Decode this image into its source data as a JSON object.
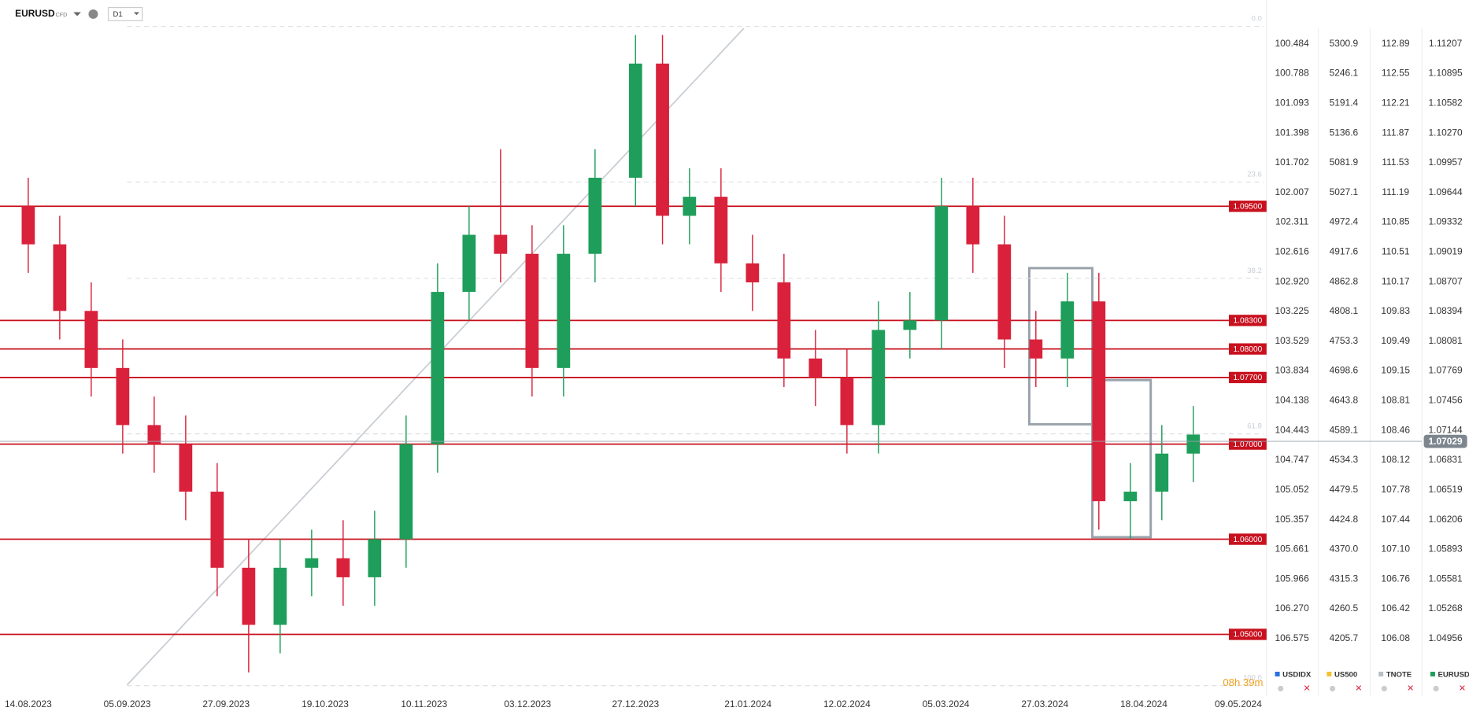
{
  "header": {
    "symbol": "EURUSD",
    "kind": "CFD",
    "interval": "D1"
  },
  "chart_data": {
    "type": "candlestick",
    "x": [
      "14.08.2023",
      "21.08.2023",
      "28.08.2023",
      "04.09.2023",
      "11.09.2023",
      "18.09.2023",
      "25.09.2023",
      "02.10.2023",
      "09.10.2023",
      "16.10.2023",
      "23.10.2023",
      "30.10.2023",
      "06.11.2023",
      "13.11.2023",
      "20.11.2023",
      "27.11.2023",
      "04.12.2023",
      "11.12.2023",
      "18.12.2023",
      "27.12.2023",
      "02.01.2024",
      "08.01.2024",
      "15.01.2024",
      "22.01.2024",
      "29.01.2024",
      "05.02.2024",
      "12.02.2024",
      "19.02.2024",
      "26.02.2024",
      "04.03.2024",
      "11.03.2024",
      "18.03.2024",
      "25.03.2024",
      "01.04.2024",
      "08.04.2024",
      "15.04.2024",
      "22.04.2024",
      "29.04.2024"
    ],
    "open": [
      1.095,
      1.091,
      1.084,
      1.078,
      1.072,
      1.07,
      1.065,
      1.057,
      1.051,
      1.057,
      1.058,
      1.056,
      1.06,
      1.07,
      1.086,
      1.092,
      1.09,
      1.078,
      1.09,
      1.098,
      1.11,
      1.094,
      1.096,
      1.089,
      1.087,
      1.079,
      1.077,
      1.072,
      1.082,
      1.083,
      1.095,
      1.091,
      1.081,
      1.079,
      1.085,
      1.064,
      1.065,
      1.069
    ],
    "high": [
      1.098,
      1.094,
      1.087,
      1.081,
      1.075,
      1.073,
      1.068,
      1.06,
      1.06,
      1.061,
      1.062,
      1.063,
      1.073,
      1.089,
      1.095,
      1.101,
      1.093,
      1.093,
      1.101,
      1.113,
      1.113,
      1.099,
      1.099,
      1.092,
      1.09,
      1.082,
      1.08,
      1.085,
      1.086,
      1.098,
      1.098,
      1.094,
      1.084,
      1.088,
      1.088,
      1.068,
      1.072,
      1.074
    ],
    "low": [
      1.088,
      1.081,
      1.075,
      1.069,
      1.067,
      1.062,
      1.054,
      1.046,
      1.048,
      1.054,
      1.053,
      1.053,
      1.057,
      1.067,
      1.083,
      1.087,
      1.075,
      1.075,
      1.087,
      1.095,
      1.091,
      1.091,
      1.086,
      1.084,
      1.076,
      1.074,
      1.069,
      1.069,
      1.079,
      1.08,
      1.088,
      1.078,
      1.076,
      1.076,
      1.061,
      1.06,
      1.062,
      1.066
    ],
    "close": [
      1.091,
      1.084,
      1.078,
      1.072,
      1.07,
      1.065,
      1.057,
      1.051,
      1.057,
      1.058,
      1.056,
      1.06,
      1.07,
      1.086,
      1.092,
      1.09,
      1.078,
      1.09,
      1.098,
      1.11,
      1.094,
      1.096,
      1.089,
      1.087,
      1.079,
      1.077,
      1.072,
      1.082,
      1.083,
      1.095,
      1.091,
      1.081,
      1.079,
      1.085,
      1.064,
      1.065,
      1.069,
      1.071
    ],
    "up_color": "#1e9e5a",
    "down_color": "#d9213b",
    "ylim": [
      1.0435,
      1.1152
    ],
    "yticks": [
      1.11207,
      1.10895,
      1.10582,
      {
        "value": 1.1027,
        "label": "1.10270"
      },
      1.09957,
      1.09644,
      1.09332,
      1.09019,
      1.08707,
      1.08394,
      1.08081,
      1.07769,
      1.07456,
      1.07144,
      1.06831,
      1.06519,
      1.06206,
      1.05893,
      1.05581,
      1.05268,
      1.04956
    ],
    "xticks": [
      "14.08.2023",
      "05.09.2023",
      "27.09.2023",
      "19.10.2023",
      "10.11.2023",
      "03.12.2023",
      "27.12.2023",
      "21.01.2024",
      "12.02.2024",
      "05.03.2024",
      "27.03.2024",
      "18.04.2024",
      "09.05.2024"
    ],
    "levels": [
      1.095,
      1.083,
      1.08,
      1.077,
      1.07,
      1.06,
      1.05
    ],
    "level_labels": [
      "1.09500",
      "1.08300",
      "1.08000",
      "1.07700",
      "1.07000",
      "1.06000",
      "1.05000"
    ],
    "level_color": "#c8101e",
    "fib_range": [
      1.1139,
      1.0446
    ],
    "fib_levels": [
      0,
      23.6,
      38.2,
      61.8,
      100
    ],
    "fib_labels": [
      "0.0",
      "23.6",
      "38.2",
      "61.8",
      "100.0"
    ],
    "last_price": 1.07029,
    "last_price_label": "1.07029",
    "timer": "08h 39m",
    "other_axes": [
      {
        "name": "USDIDX",
        "color": "#2a6fdb",
        "labels": [
          "100.484",
          "100.788",
          "101.093",
          "101.398",
          "101.702",
          "102.007",
          "102.311",
          "102.616",
          "102.920",
          "103.225",
          "103.529",
          "103.834",
          "104.138",
          "104.443",
          "104.747",
          "105.052",
          "105.357",
          "105.661",
          "105.966",
          "106.270",
          "106.575"
        ]
      },
      {
        "name": "US500",
        "color": "#f2c230",
        "labels": [
          "5300.9",
          "5246.1",
          "5191.4",
          "5136.6",
          "5081.9",
          "5027.1",
          "4972.4",
          "4917.6",
          "4862.8",
          "4808.1",
          "4753.3",
          "4698.6",
          "4643.8",
          "4589.1",
          "4534.3",
          "4479.5",
          "4424.8",
          "4370.0",
          "4315.3",
          "4260.5",
          "4205.7"
        ]
      },
      {
        "name": "TNOTE",
        "color": "#b8bec4",
        "labels": [
          "112.89",
          "112.55",
          "112.21",
          "111.87",
          "111.53",
          "111.19",
          "110.85",
          "110.51",
          "110.17",
          "109.83",
          "109.49",
          "109.15",
          "108.81",
          "108.46",
          "108.12",
          "107.78",
          "107.44",
          "107.10",
          "106.76",
          "106.42",
          "106.08"
        ]
      }
    ],
    "main_axis_name": "EURUSD",
    "main_axis_color": "#1e9e5a"
  }
}
